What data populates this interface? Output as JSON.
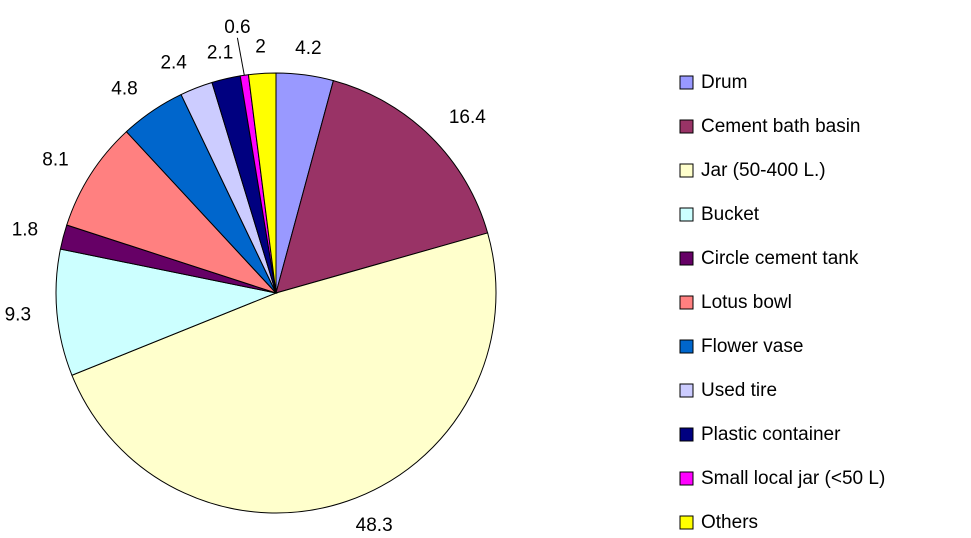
{
  "chart_data": {
    "type": "pie",
    "categories": [
      "Drum",
      "Cement bath basin",
      "Jar (50-400 L.)",
      "Bucket",
      "Circle cement tank",
      "Lotus bowl",
      "Flower vase",
      "Used tire",
      "Plastic container",
      "Small local jar (<50 L)",
      "Others"
    ],
    "values": [
      4.2,
      16.4,
      48.3,
      9.3,
      1.8,
      8.1,
      4.8,
      2.4,
      2.1,
      0.6,
      2
    ],
    "colors": [
      "#9999ff",
      "#993366",
      "#ffffcc",
      "#ccffff",
      "#660066",
      "#ff8080",
      "#0066cc",
      "#ccccff",
      "#000080",
      "#ff00ff",
      "#ffff00"
    ],
    "legend": "right"
  }
}
